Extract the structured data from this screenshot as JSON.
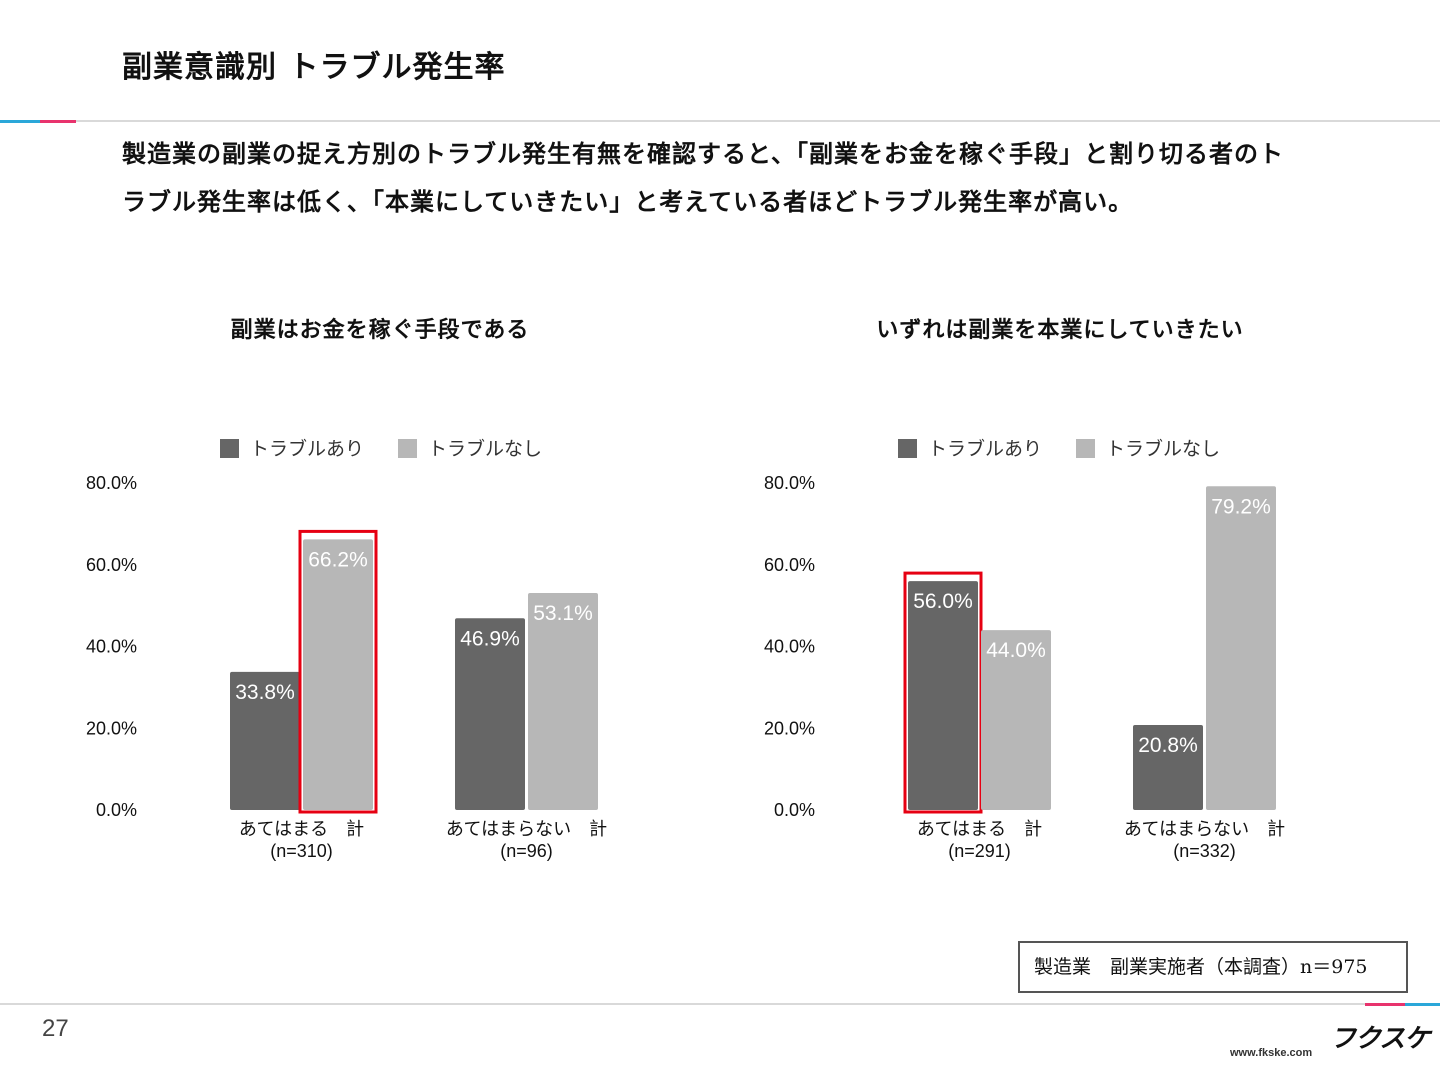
{
  "header": {
    "title": "副業意識別 トラブル発生率"
  },
  "description": {
    "line1": "製造業の副業の捉え方別のトラブル発生有無を確認すると、「副業をお金を稼ぐ手段」と割り切る者のト",
    "line2": "ラブル発生率は低く、「本業にしていきたい」と考えている者ほどトラブル発生率が高い。"
  },
  "colors": {
    "trouble_yes": "#666666",
    "trouble_no": "#b7b7b7",
    "highlight": "#e60012",
    "accent_blue": "#2aa7d9",
    "accent_pink": "#e8336d"
  },
  "chart_data": [
    {
      "type": "bar",
      "title": "副業はお金を稼ぐ手段である",
      "legend": [
        "トラブルあり",
        "トラブルなし"
      ],
      "legend_position": "top",
      "categories": [
        "あてはまる　計",
        "あてはまらない　計"
      ],
      "category_n": [
        "(n=310)",
        "(n=96)"
      ],
      "series": [
        {
          "name": "トラブルあり",
          "values": [
            33.8,
            46.9
          ],
          "labels": [
            "33.8%",
            "46.9%"
          ]
        },
        {
          "name": "トラブルなし",
          "values": [
            66.2,
            53.1
          ],
          "labels": [
            "66.2%",
            "53.1%"
          ]
        }
      ],
      "yticks": [
        "0.0%",
        "20.0%",
        "40.0%",
        "60.0%",
        "80.0%"
      ],
      "ylim": [
        0,
        80
      ],
      "highlight": {
        "series": 1,
        "category": 0
      }
    },
    {
      "type": "bar",
      "title": "いずれは副業を本業にしていきたい",
      "legend": [
        "トラブルあり",
        "トラブルなし"
      ],
      "legend_position": "top",
      "categories": [
        "あてはまる　計",
        "あてはまらない　計"
      ],
      "category_n": [
        "(n=291)",
        "(n=332)"
      ],
      "series": [
        {
          "name": "トラブルあり",
          "values": [
            56.0,
            20.8
          ],
          "labels": [
            "56.0%",
            "20.8%"
          ]
        },
        {
          "name": "トラブルなし",
          "values": [
            44.0,
            79.2
          ],
          "labels": [
            "44.0%",
            "79.2%"
          ]
        }
      ],
      "yticks": [
        "0.0%",
        "20.0%",
        "40.0%",
        "60.0%",
        "80.0%"
      ],
      "ylim": [
        0,
        80
      ],
      "highlight": {
        "series": 0,
        "category": 0
      }
    }
  ],
  "note": "製造業　副業実施者（本調査）n＝975",
  "footer": {
    "page_number": "27",
    "logo": "フクスケ",
    "url": "www.fkske.com"
  }
}
